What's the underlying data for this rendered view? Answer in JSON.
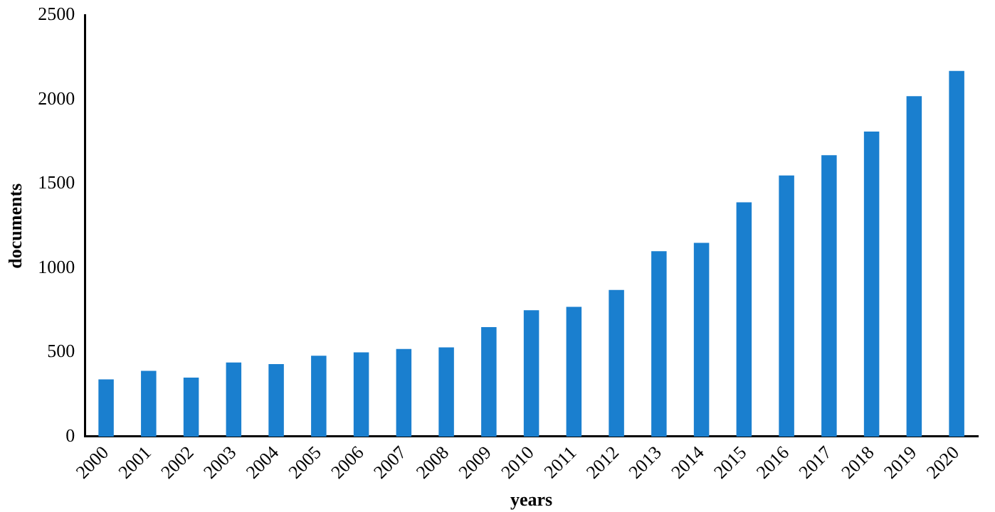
{
  "chart_data": {
    "type": "bar",
    "xlabel": "years",
    "ylabel": "documents",
    "categories": [
      "2000",
      "2001",
      "2002",
      "2003",
      "2004",
      "2005",
      "2006",
      "2007",
      "2008",
      "2009",
      "2010",
      "2011",
      "2012",
      "2013",
      "2014",
      "2015",
      "2016",
      "2017",
      "2018",
      "2019",
      "2020"
    ],
    "values": [
      340,
      390,
      350,
      440,
      430,
      480,
      500,
      520,
      530,
      650,
      750,
      770,
      870,
      1100,
      1150,
      1390,
      1550,
      1670,
      1810,
      2020,
      2170
    ],
    "color": "#1a7fcf",
    "ylim": [
      0,
      2500
    ],
    "yticks": [
      0,
      500,
      1000,
      1500,
      2000,
      2500
    ],
    "grid": false
  }
}
